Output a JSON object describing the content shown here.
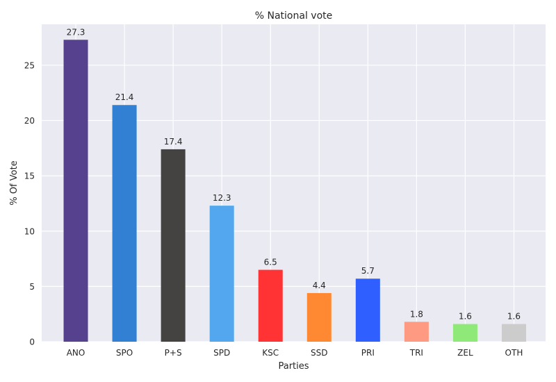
{
  "chart_data": {
    "type": "bar",
    "title": "% National vote",
    "xlabel": "Parties",
    "ylabel": "% Of Vote",
    "categories": [
      "ANO",
      "SPO",
      "P+S",
      "SPD",
      "KSC",
      "SSD",
      "PRI",
      "TRI",
      "ZEL",
      "OTH"
    ],
    "values": [
      27.3,
      21.4,
      17.4,
      12.3,
      6.5,
      4.4,
      5.7,
      1.8,
      1.6,
      1.6
    ],
    "data_labels": [
      "27.3",
      "21.4",
      "17.4",
      "12.3",
      "6.5",
      "4.4",
      "5.7",
      "1.8",
      "1.6",
      "1.6"
    ],
    "colors": [
      "#56418f",
      "#3180d4",
      "#454341",
      "#52a7ee",
      "#ff3333",
      "#ff8832",
      "#305fff",
      "#ff9a82",
      "#8ee979",
      "#cccccc"
    ],
    "ylim": [
      0,
      28.7
    ],
    "yticks": [
      0,
      5,
      10,
      15,
      20,
      25
    ],
    "ytick_labels": [
      "0",
      "5",
      "10",
      "15",
      "20",
      "25"
    ],
    "grid": true,
    "background_color": "#eaeaf2",
    "grid_color": "#ffffff"
  }
}
